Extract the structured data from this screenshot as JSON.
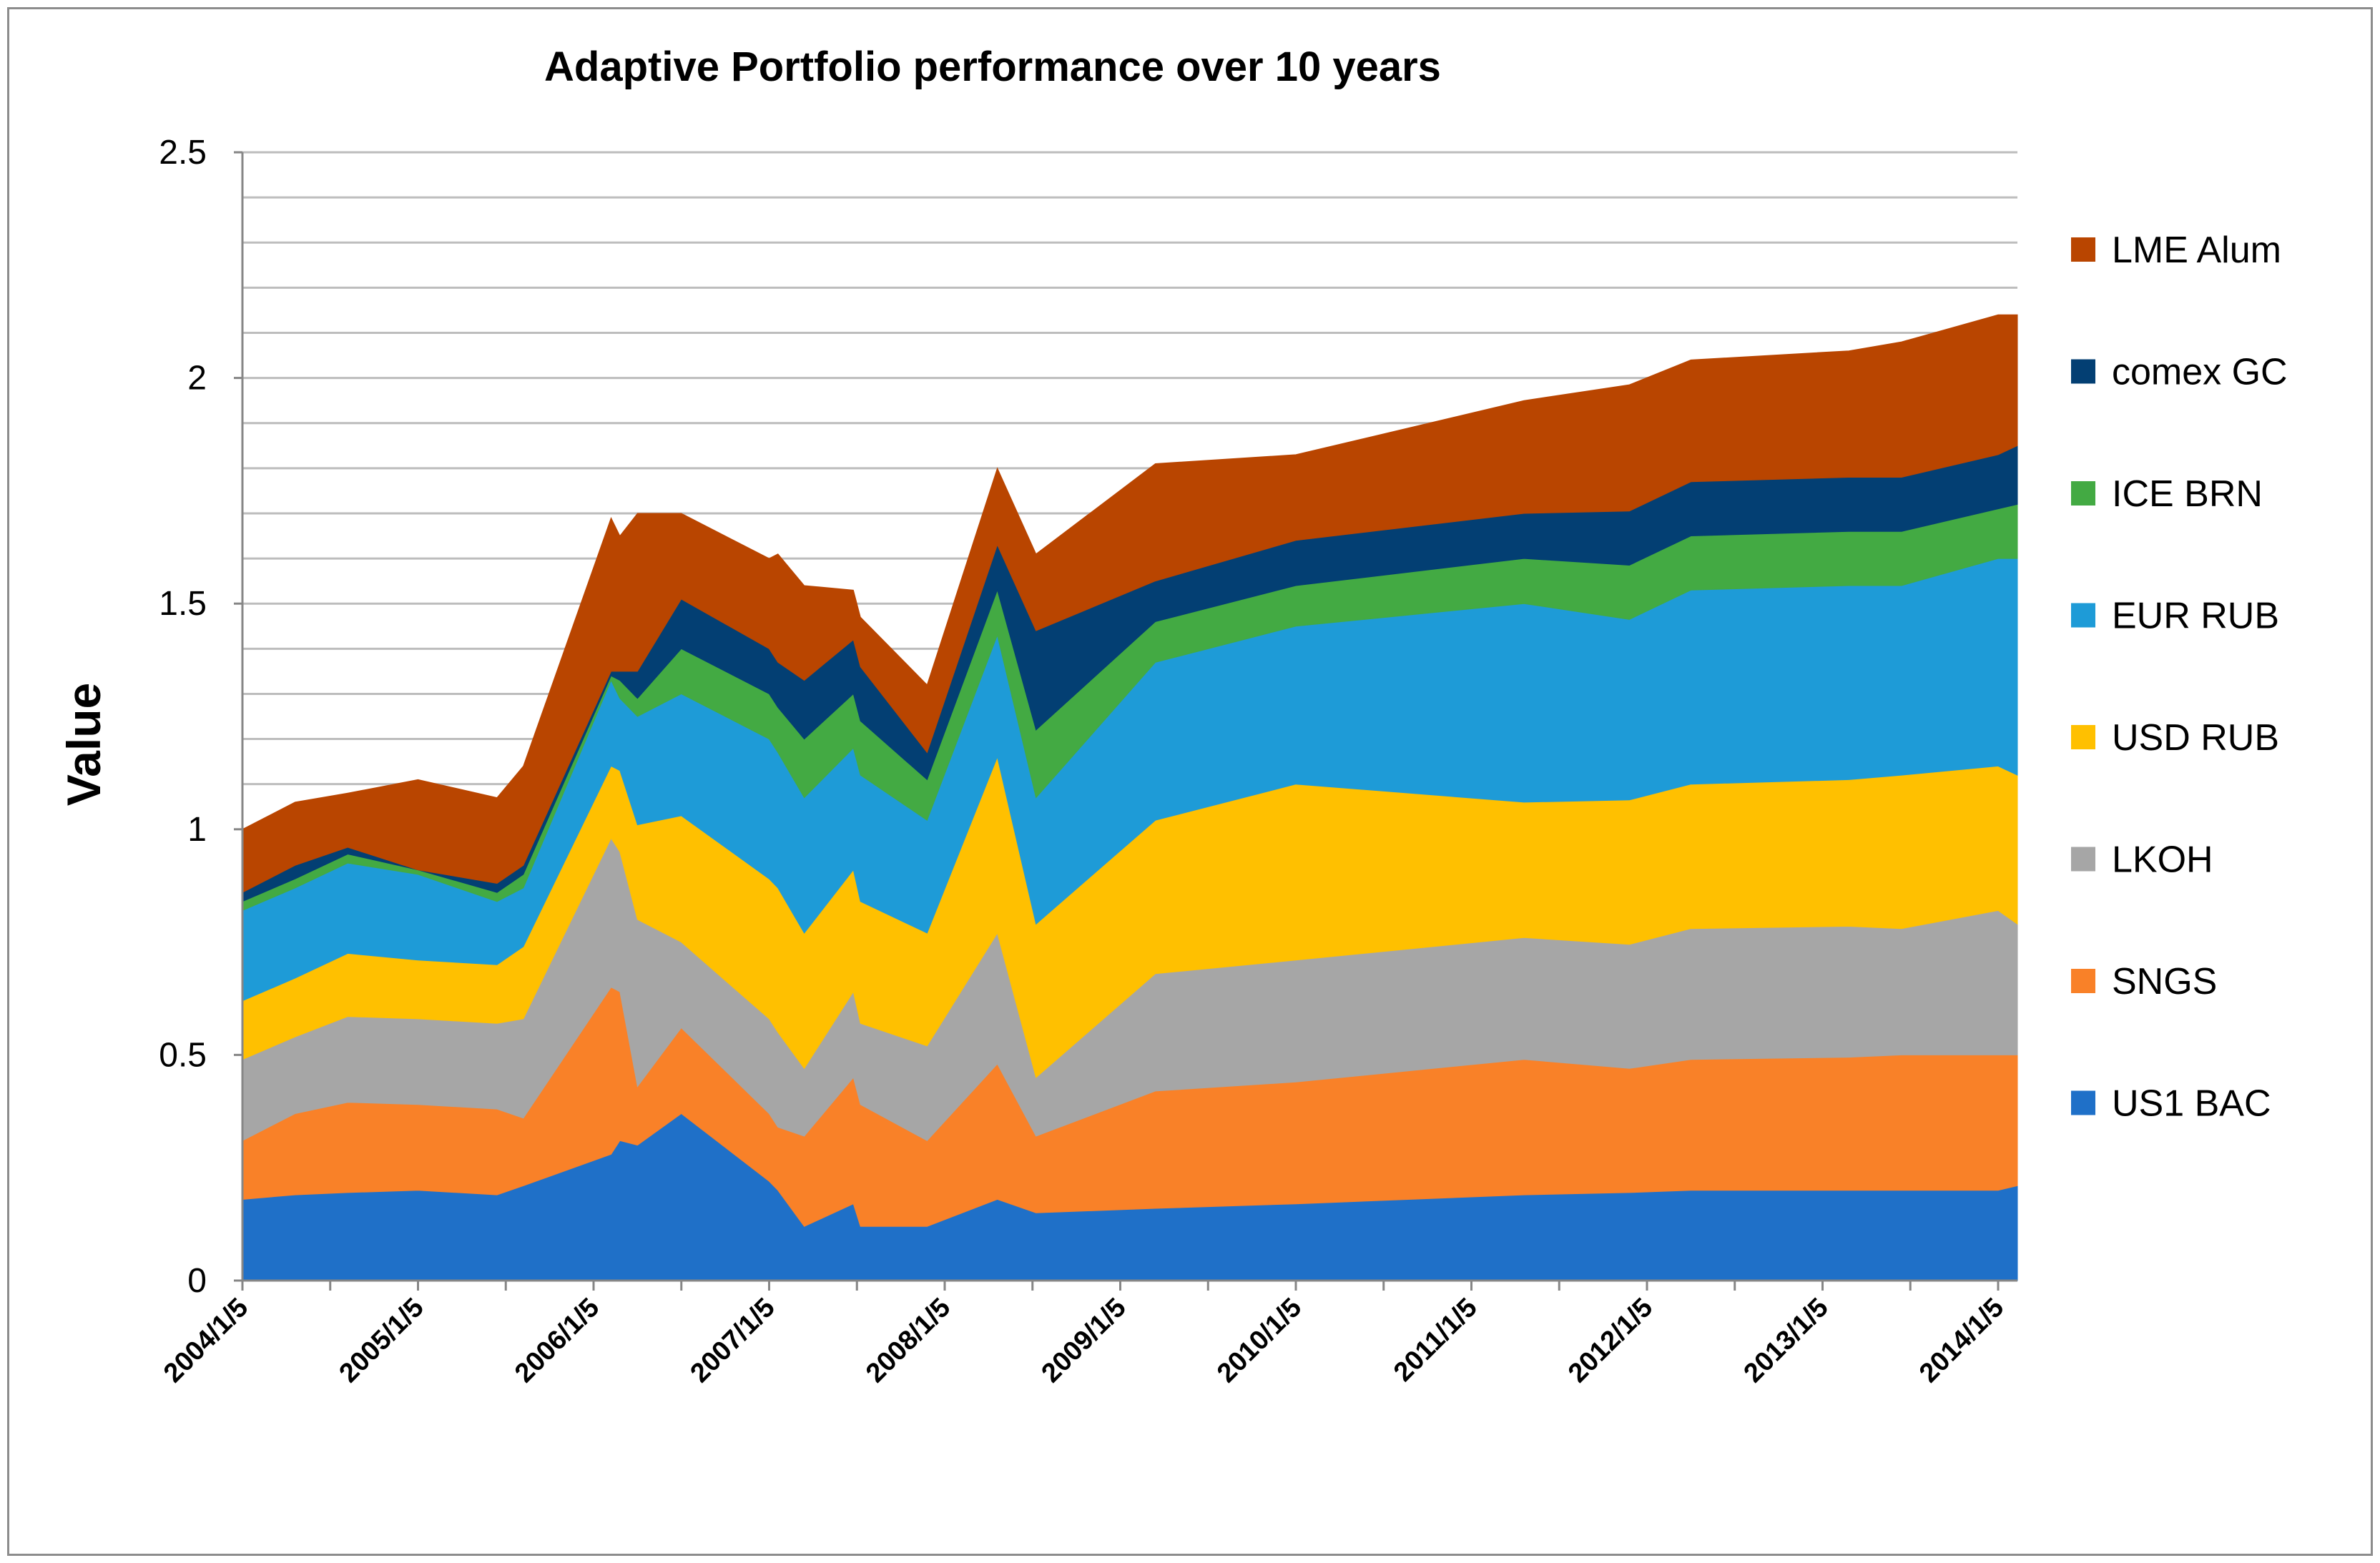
{
  "chart_data": {
    "type": "area",
    "stacked": true,
    "title": "Adaptive Portfolio performance over 10 years",
    "xlabel": "",
    "ylabel": "Value",
    "ylim": [
      0,
      2.5
    ],
    "yticks": [
      "0",
      "0.5",
      "1",
      "1.5",
      "2",
      "2.5"
    ],
    "ytick_values": [
      0,
      0.5,
      1,
      1.5,
      2,
      2.5
    ],
    "minor_gridline_step": 0.1,
    "xlim": [
      2004.0,
      2014.11
    ],
    "xtick_labels": [
      "2004/1/5",
      "2005/1/5",
      "2006/1/5",
      "2007/1/5",
      "2008/1/5",
      "2009/1/5",
      "2010/1/5",
      "2011/1/5",
      "2012/1/5",
      "2013/1/5",
      "2014/1/5"
    ],
    "xtick_values": [
      2004.0,
      2005.0,
      2006.0,
      2007.0,
      2008.0,
      2009.0,
      2010.0,
      2011.0,
      2012.0,
      2013.0,
      2014.0
    ],
    "legend_position": "right",
    "x": [
      2004.0,
      2004.3,
      2004.6,
      2005.0,
      2005.45,
      2005.6,
      2006.1,
      2006.15,
      2006.25,
      2006.5,
      2007.0,
      2007.05,
      2007.2,
      2007.48,
      2007.52,
      2007.9,
      2008.3,
      2008.52,
      2009.2,
      2010.0,
      2011.3,
      2011.9,
      2012.25,
      2013.15,
      2013.45,
      2014.0,
      2014.11
    ],
    "series": [
      {
        "name": "US1 BAC",
        "color": "#1F70C8",
        "values": [
          0.18,
          0.19,
          0.195,
          0.2,
          0.19,
          0.21,
          0.28,
          0.31,
          0.3,
          0.37,
          0.22,
          0.2,
          0.12,
          0.17,
          0.12,
          0.12,
          0.18,
          0.15,
          0.16,
          0.17,
          0.19,
          0.195,
          0.2,
          0.2,
          0.2,
          0.2,
          0.21
        ]
      },
      {
        "name": "SNGS",
        "color": "#F98128",
        "values": [
          0.13,
          0.18,
          0.2,
          0.19,
          0.19,
          0.15,
          0.37,
          0.33,
          0.13,
          0.19,
          0.15,
          0.14,
          0.2,
          0.28,
          0.27,
          0.19,
          0.3,
          0.17,
          0.26,
          0.27,
          0.3,
          0.275,
          0.29,
          0.295,
          0.3,
          0.3,
          0.29
        ]
      },
      {
        "name": "LKOH",
        "color": "#A6A6A6",
        "values": [
          0.18,
          0.17,
          0.19,
          0.19,
          0.19,
          0.22,
          0.33,
          0.31,
          0.37,
          0.19,
          0.21,
          0.21,
          0.15,
          0.19,
          0.18,
          0.21,
          0.29,
          0.13,
          0.26,
          0.27,
          0.27,
          0.275,
          0.29,
          0.29,
          0.28,
          0.32,
          0.29
        ]
      },
      {
        "name": "USD RUB",
        "color": "#FFC000",
        "values": [
          0.13,
          0.13,
          0.14,
          0.13,
          0.13,
          0.16,
          0.16,
          0.18,
          0.21,
          0.28,
          0.31,
          0.32,
          0.3,
          0.27,
          0.27,
          0.25,
          0.39,
          0.34,
          0.34,
          0.39,
          0.3,
          0.32,
          0.32,
          0.325,
          0.34,
          0.32,
          0.33
        ]
      },
      {
        "name": "EUR RUB",
        "color": "#1E9BD7",
        "values": [
          0.2,
          0.2,
          0.2,
          0.19,
          0.14,
          0.13,
          0.19,
          0.16,
          0.24,
          0.27,
          0.31,
          0.3,
          0.3,
          0.27,
          0.28,
          0.25,
          0.27,
          0.28,
          0.35,
          0.35,
          0.44,
          0.4,
          0.43,
          0.43,
          0.42,
          0.46,
          0.48
        ]
      },
      {
        "name": "ICE BRN",
        "color": "#43AA43",
        "values": [
          0.02,
          0.02,
          0.02,
          0.01,
          0.02,
          0.03,
          0.01,
          0.04,
          0.04,
          0.1,
          0.1,
          0.1,
          0.13,
          0.12,
          0.12,
          0.09,
          0.1,
          0.15,
          0.09,
          0.09,
          0.1,
          0.12,
          0.12,
          0.12,
          0.12,
          0.11,
          0.12
        ]
      },
      {
        "name": "comex GC",
        "color": "#033F73",
        "values": [
          0.02,
          0.03,
          0.015,
          0.0,
          0.02,
          0.02,
          0.01,
          0.02,
          0.06,
          0.11,
          0.1,
          0.1,
          0.13,
          0.12,
          0.12,
          0.06,
          0.1,
          0.22,
          0.09,
          0.1,
          0.1,
          0.12,
          0.12,
          0.12,
          0.12,
          0.12,
          0.13
        ]
      },
      {
        "name": "LME Alum",
        "color": "#B94500",
        "values": [
          0.14,
          0.14,
          0.12,
          0.2,
          0.19,
          0.22,
          0.34,
          0.3,
          0.35,
          0.19,
          0.2,
          0.24,
          0.21,
          0.11,
          0.11,
          0.15,
          0.17,
          0.17,
          0.26,
          0.19,
          0.25,
          0.28,
          0.27,
          0.28,
          0.3,
          0.31,
          0.29
        ]
      }
    ]
  }
}
